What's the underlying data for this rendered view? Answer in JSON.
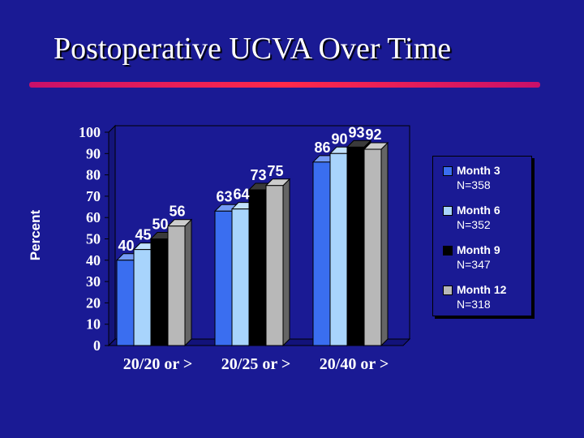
{
  "slide": {
    "title": "Postoperative UCVA Over Time",
    "rule_colors": [
      "#c8106a",
      "#ff2a4a",
      "#c8106a"
    ]
  },
  "chart_data": {
    "type": "bar",
    "title": "",
    "xlabel": "",
    "ylabel": "Percent",
    "ylim": [
      0,
      100
    ],
    "yticks": [
      "0",
      "10",
      "20",
      "30",
      "40",
      "50",
      "60",
      "70",
      "80",
      "90",
      "100"
    ],
    "categories": [
      "20/20 or >",
      "20/25 or >",
      "20/40 or >"
    ],
    "grid": false,
    "legend_position": "right",
    "series": [
      {
        "name": "Month 3",
        "n_label": "N=358",
        "color": "#3a6ef0",
        "values": [
          40,
          63,
          86
        ],
        "labels": [
          "40",
          "63",
          "86"
        ]
      },
      {
        "name": "Month 6",
        "n_label": "N=352",
        "color": "#a8d4fc",
        "values": [
          45,
          64,
          90
        ],
        "labels": [
          "45",
          "64",
          "90"
        ]
      },
      {
        "name": "Month 9",
        "n_label": "N=347",
        "color": "#000000",
        "values": [
          50,
          73,
          93
        ],
        "labels": [
          "50",
          "73",
          "93"
        ]
      },
      {
        "name": "Month 12",
        "n_label": "N=318",
        "color": "#b8b8b8",
        "values": [
          56,
          75,
          92
        ],
        "labels": [
          "56",
          "75",
          "92"
        ]
      }
    ]
  }
}
